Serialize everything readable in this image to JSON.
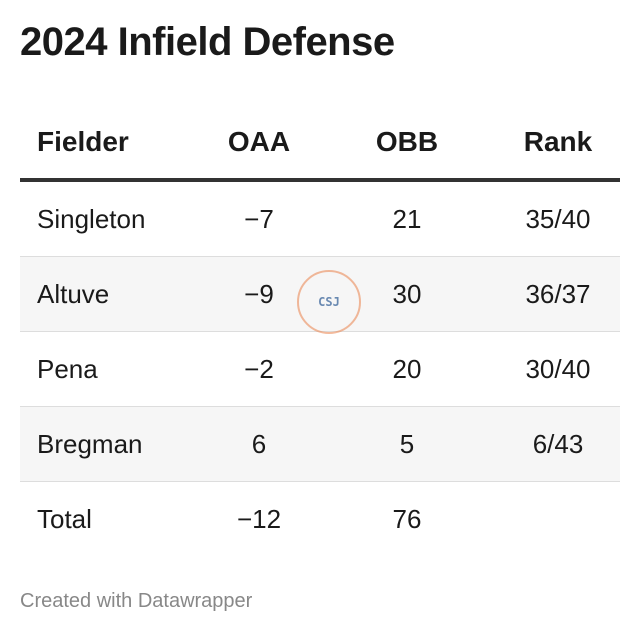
{
  "header": {
    "title": "2024 Infield Defense"
  },
  "table": {
    "columns": [
      "Fielder",
      "OAA",
      "OBB",
      "Rank"
    ],
    "rows": [
      [
        "Singleton",
        "−7",
        "21",
        "35/40"
      ],
      [
        "Altuve",
        "−9",
        "30",
        "36/37"
      ],
      [
        "Pena",
        "−2",
        "20",
        "30/40"
      ],
      [
        "Bregman",
        "6",
        "5",
        "6/43"
      ],
      [
        "Total",
        "−12",
        "76"
      ]
    ]
  },
  "watermark": "CSJ",
  "footer": "Created with Datawrapper"
}
